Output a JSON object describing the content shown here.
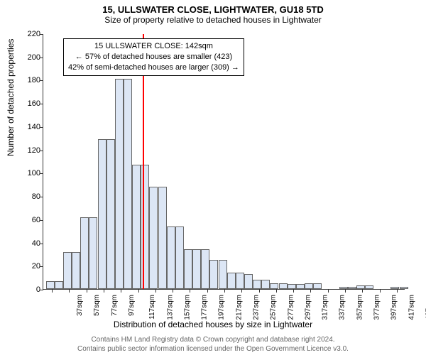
{
  "title": "15, ULLSWATER CLOSE, LIGHTWATER, GU18 5TD",
  "subtitle": "Size of property relative to detached houses in Lightwater",
  "y_axis_label": "Number of detached properties",
  "x_axis_label": "Distribution of detached houses by size in Lightwater",
  "footer_line1": "Contains HM Land Registry data © Crown copyright and database right 2024.",
  "footer_line2": "Contains public sector information licensed under the Open Government Licence v3.0.",
  "chart": {
    "type": "histogram",
    "background_color": "#ffffff",
    "axis_color": "#333333",
    "bar_fill": "#dce6f5",
    "bar_border": "#666666",
    "marker_color": "#ff0000",
    "text_color": "#000000",
    "footer_color": "#666666",
    "ylim": [
      0,
      220
    ],
    "ytick_step": 20,
    "xtick_start": 37,
    "xtick_step": 20,
    "xtick_count": 21,
    "x_unit": "sqm",
    "bar_bin_width": 10,
    "marker_x": 142,
    "bars": [
      {
        "x": 30,
        "h": 7
      },
      {
        "x": 40,
        "h": 7
      },
      {
        "x": 50,
        "h": 32
      },
      {
        "x": 60,
        "h": 32
      },
      {
        "x": 70,
        "h": 62
      },
      {
        "x": 80,
        "h": 62
      },
      {
        "x": 90,
        "h": 129
      },
      {
        "x": 100,
        "h": 129
      },
      {
        "x": 110,
        "h": 181
      },
      {
        "x": 120,
        "h": 181
      },
      {
        "x": 130,
        "h": 107
      },
      {
        "x": 140,
        "h": 107
      },
      {
        "x": 150,
        "h": 88
      },
      {
        "x": 160,
        "h": 88
      },
      {
        "x": 170,
        "h": 54
      },
      {
        "x": 180,
        "h": 54
      },
      {
        "x": 190,
        "h": 34
      },
      {
        "x": 200,
        "h": 34
      },
      {
        "x": 210,
        "h": 34
      },
      {
        "x": 220,
        "h": 25
      },
      {
        "x": 230,
        "h": 25
      },
      {
        "x": 240,
        "h": 14
      },
      {
        "x": 250,
        "h": 14
      },
      {
        "x": 260,
        "h": 13
      },
      {
        "x": 270,
        "h": 8
      },
      {
        "x": 280,
        "h": 8
      },
      {
        "x": 290,
        "h": 5
      },
      {
        "x": 300,
        "h": 5
      },
      {
        "x": 310,
        "h": 4
      },
      {
        "x": 320,
        "h": 4
      },
      {
        "x": 330,
        "h": 5
      },
      {
        "x": 340,
        "h": 5
      },
      {
        "x": 350,
        "h": 0
      },
      {
        "x": 360,
        "h": 0
      },
      {
        "x": 370,
        "h": 2
      },
      {
        "x": 380,
        "h": 2
      },
      {
        "x": 390,
        "h": 3
      },
      {
        "x": 400,
        "h": 3
      },
      {
        "x": 410,
        "h": 0
      },
      {
        "x": 420,
        "h": 0
      },
      {
        "x": 430,
        "h": 2
      },
      {
        "x": 440,
        "h": 2
      }
    ]
  },
  "annotation": {
    "line1": "15 ULLSWATER CLOSE: 142sqm",
    "line2": "← 57% of detached houses are smaller (423)",
    "line3": "42% of semi-detached houses are larger (309) →"
  }
}
